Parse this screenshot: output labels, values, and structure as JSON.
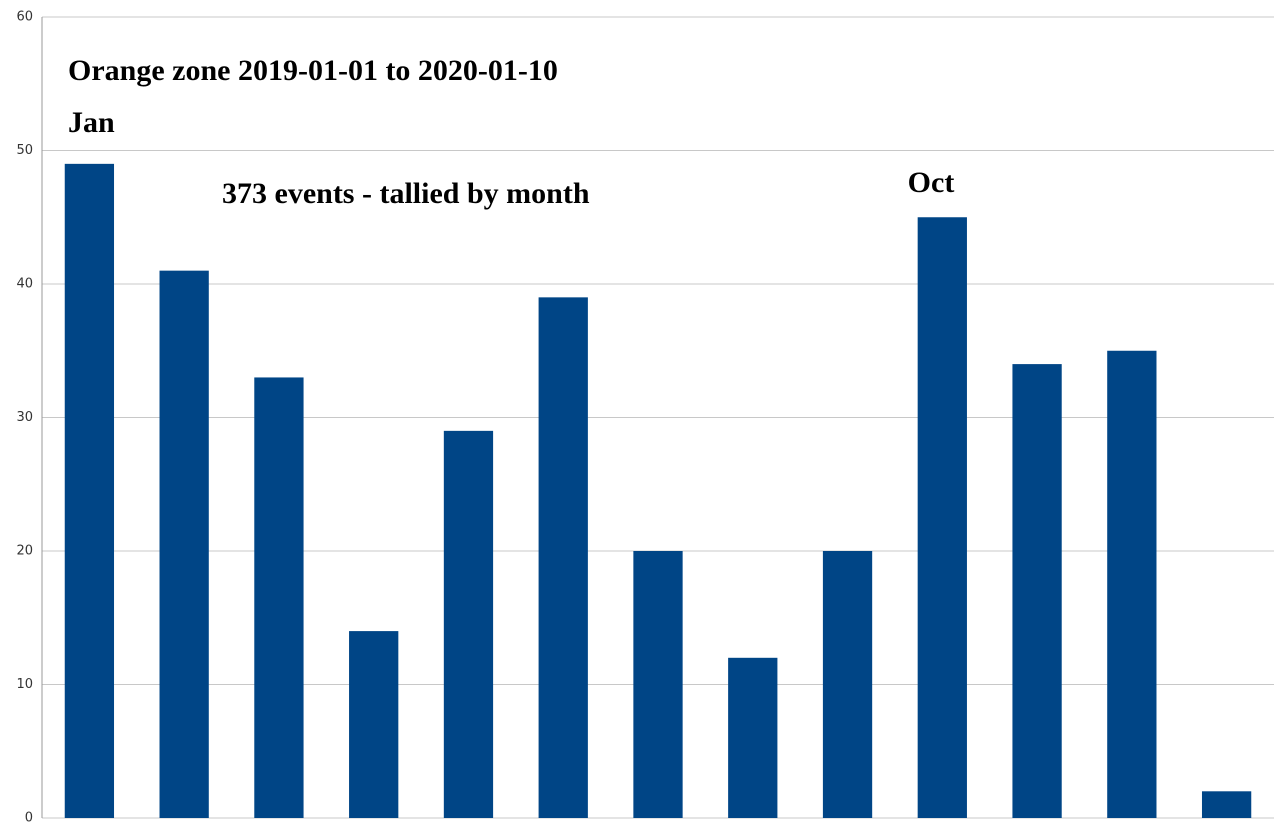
{
  "chart_data": {
    "type": "bar",
    "title": "Orange zone 2019-01-01 to 2020-01-10",
    "subtitle": "373 events - tallied by month",
    "annotations": [
      "Jan",
      "Oct"
    ],
    "categories": [
      null,
      null,
      null,
      null,
      null,
      null,
      null,
      null,
      null,
      null,
      null,
      null,
      null
    ],
    "values": [
      49,
      41,
      33,
      14,
      29,
      39,
      20,
      12,
      20,
      45,
      34,
      35,
      2
    ],
    "color": "#004586",
    "ylim": [
      0,
      60
    ],
    "yticks": [
      0,
      10,
      20,
      30,
      40,
      50,
      60
    ],
    "grid": true
  }
}
